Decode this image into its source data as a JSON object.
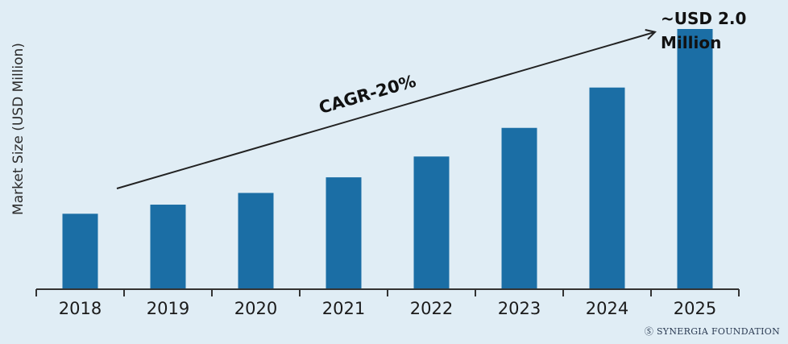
{
  "chart_data": {
    "type": "bar",
    "categories": [
      "2018",
      "2019",
      "2020",
      "2021",
      "2022",
      "2023",
      "2024",
      "2025"
    ],
    "values": [
      0.58,
      0.65,
      0.74,
      0.86,
      1.02,
      1.24,
      1.55,
      2.0
    ],
    "ylabel": "Market Size (USD Million)",
    "xlabel": "",
    "ylim": [
      0,
      2.0
    ],
    "bar_color": "#1b6ea5",
    "annotations": {
      "cagr": "CAGR-20%",
      "end_value_line1": "~USD 2.0",
      "end_value_line2": "Million"
    },
    "grid": false
  },
  "watermark": "Ⓢ SYNERGIA FOUNDATION"
}
